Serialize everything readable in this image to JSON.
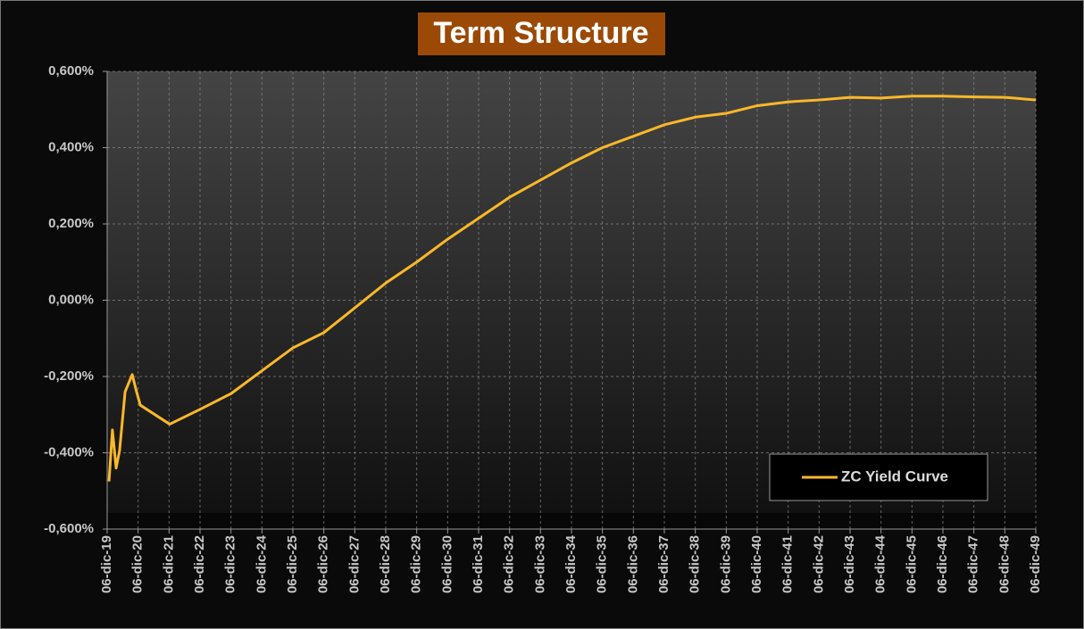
{
  "chart_data": {
    "type": "line",
    "title": "Term Structure",
    "x": [
      2019.06,
      2019.17,
      2019.29,
      2019.4,
      2019.58,
      2019.81,
      2019.95,
      2020.07,
      2021.02,
      2022.03,
      2023,
      2024,
      2025,
      2026,
      2027,
      2028,
      2029,
      2030,
      2031,
      2032,
      2033,
      2034,
      2035,
      2036,
      2037,
      2038,
      2039,
      2040,
      2041,
      2042,
      2043,
      2044,
      2045,
      2046,
      2047,
      2048,
      2049
    ],
    "series": [
      {
        "name": "ZC Yield Curve",
        "color": "#fbb829",
        "values": [
          -0.475,
          -0.34,
          -0.44,
          -0.395,
          -0.24,
          -0.195,
          -0.24,
          -0.275,
          -0.325,
          -0.285,
          -0.245,
          -0.185,
          -0.125,
          -0.085,
          -0.02,
          0.045,
          0.1,
          0.16,
          0.215,
          0.27,
          0.315,
          0.36,
          0.4,
          0.43,
          0.46,
          0.48,
          0.49,
          0.51,
          0.52,
          0.525,
          0.532,
          0.53,
          0.535,
          0.535,
          0.533,
          0.532,
          0.525
        ]
      }
    ],
    "xlim": [
      2019,
      2049
    ],
    "xticks": [
      {
        "value": 2019,
        "label": "06-dic-19"
      },
      {
        "value": 2020,
        "label": "06-dic-20"
      },
      {
        "value": 2021,
        "label": "06-dic-21"
      },
      {
        "value": 2022,
        "label": "06-dic-22"
      },
      {
        "value": 2023,
        "label": "06-dic-23"
      },
      {
        "value": 2024,
        "label": "06-dic-24"
      },
      {
        "value": 2025,
        "label": "06-dic-25"
      },
      {
        "value": 2026,
        "label": "06-dic-26"
      },
      {
        "value": 2027,
        "label": "06-dic-27"
      },
      {
        "value": 2028,
        "label": "06-dic-28"
      },
      {
        "value": 2029,
        "label": "06-dic-29"
      },
      {
        "value": 2030,
        "label": "06-dic-30"
      },
      {
        "value": 2031,
        "label": "06-dic-31"
      },
      {
        "value": 2032,
        "label": "06-dic-32"
      },
      {
        "value": 2033,
        "label": "06-dic-33"
      },
      {
        "value": 2034,
        "label": "06-dic-34"
      },
      {
        "value": 2035,
        "label": "06-dic-35"
      },
      {
        "value": 2036,
        "label": "06-dic-36"
      },
      {
        "value": 2037,
        "label": "06-dic-37"
      },
      {
        "value": 2038,
        "label": "06-dic-38"
      },
      {
        "value": 2039,
        "label": "06-dic-39"
      },
      {
        "value": 2040,
        "label": "06-dic-40"
      },
      {
        "value": 2041,
        "label": "06-dic-41"
      },
      {
        "value": 2042,
        "label": "06-dic-42"
      },
      {
        "value": 2043,
        "label": "06-dic-43"
      },
      {
        "value": 2044,
        "label": "06-dic-44"
      },
      {
        "value": 2045,
        "label": "06-dic-45"
      },
      {
        "value": 2046,
        "label": "06-dic-46"
      },
      {
        "value": 2047,
        "label": "06-dic-47"
      },
      {
        "value": 2048,
        "label": "06-dic-48"
      },
      {
        "value": 2049,
        "label": "06-dic-49"
      }
    ],
    "ylim": [
      -0.6,
      0.6
    ],
    "yticks": [
      {
        "value": -0.6,
        "label": "-0,600%"
      },
      {
        "value": -0.4,
        "label": "-0,400%"
      },
      {
        "value": -0.2,
        "label": "-0,200%"
      },
      {
        "value": 0,
        "label": "0,000%"
      },
      {
        "value": 0.2,
        "label": "0,200%"
      },
      {
        "value": 0.4,
        "label": "0,400%"
      },
      {
        "value": 0.6,
        "label": "0,600%"
      }
    ],
    "grid": true,
    "legend": "lower right"
  }
}
